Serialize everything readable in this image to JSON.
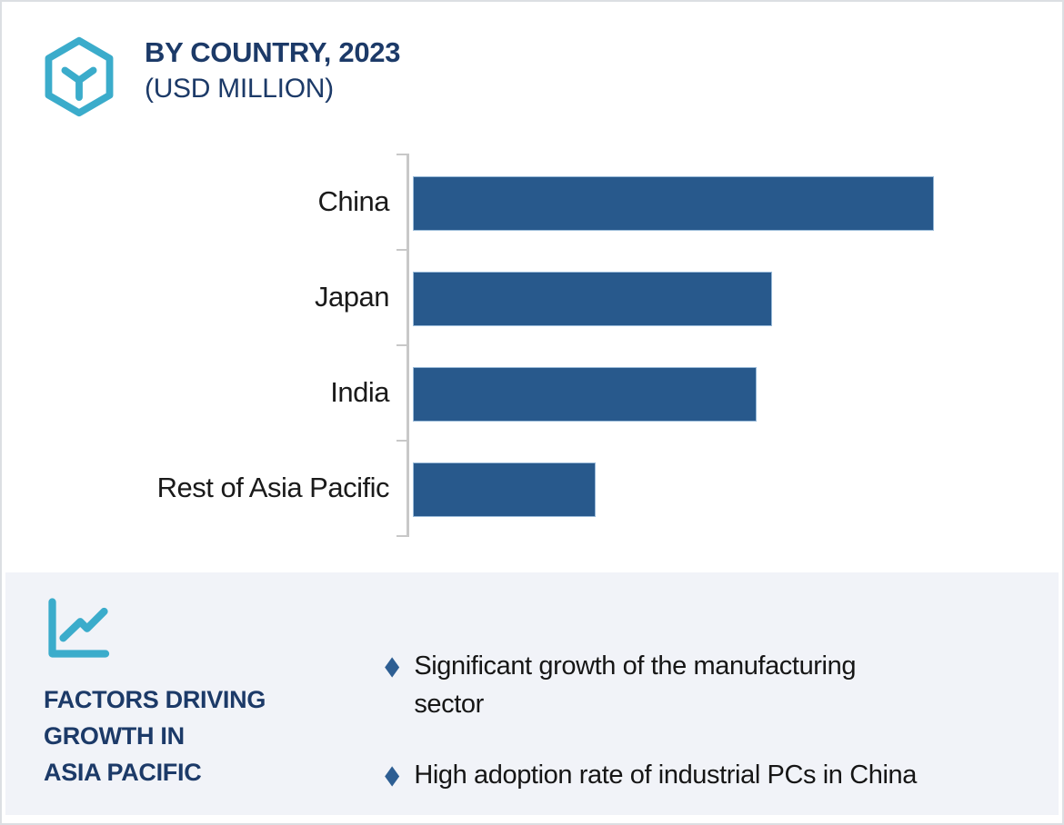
{
  "header": {
    "icon": "hexagon-cube-icon",
    "title_line1": "BY COUNTRY, 2023",
    "title_line2": "(USD MILLION)"
  },
  "chart_data": {
    "type": "bar",
    "orientation": "horizontal",
    "title": "BY COUNTRY, 2023 (USD MILLION)",
    "categories": [
      "China",
      "Japan",
      "India",
      "Rest of Asia Pacific"
    ],
    "values_pct_of_max": [
      100,
      69,
      66,
      35
    ],
    "value_axis_labels_shown": false,
    "note": "bar lengths estimated relative to longest bar; no numeric axis labels are rendered",
    "bar_color": "#28598c",
    "axis_color": "#c8c8c8",
    "legend": "none",
    "grid": "off",
    "xlabel": "",
    "ylabel": ""
  },
  "factors": {
    "icon": "trend-chart-icon",
    "heading_lines": [
      "FACTORS DRIVING",
      "GROWTH IN",
      "ASIA PACIFIC"
    ],
    "bullet_marker": "◆",
    "bullets": [
      "Significant growth of the manufacturing\nsector",
      "High adoption rate of industrial PCs in China"
    ]
  },
  "colors": {
    "accent_teal": "#3bacbb",
    "navy_heading": "#1c3a68",
    "bar_blue": "#28598c",
    "bullet_diamond": "#2d5e93",
    "panel_background": "#f1f3f8",
    "axis_gray": "#c8c8c8",
    "body_text": "#1a1a1a",
    "card_border": "#dcdfe3"
  }
}
